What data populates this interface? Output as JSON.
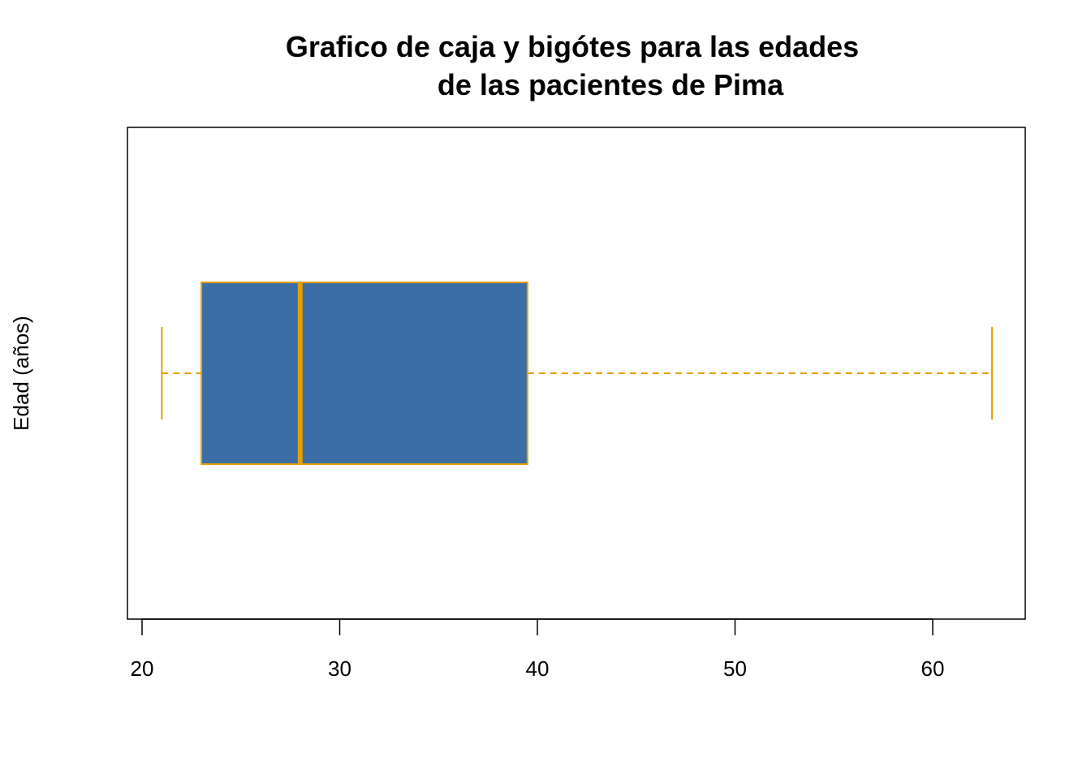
{
  "chart_data": {
    "type": "boxplot",
    "orientation": "horizontal",
    "title_lines": [
      "Grafico de caja y bigótes para las edades",
      "de las pacientes de Pima"
    ],
    "xlabel": "",
    "ylabel": "Edad (años)",
    "xlim": [
      20,
      64.5
    ],
    "x_ticks": [
      20,
      30,
      40,
      50,
      60
    ],
    "box": {
      "min": 21,
      "q1": 23,
      "median": 28,
      "q3": 39.5,
      "max": 63
    },
    "colors": {
      "box_fill": "#3B6EA5",
      "box_border": "#E69F00",
      "median": "#E69F00",
      "whisker": "#E69F00",
      "axis": "#000000"
    },
    "grid": false
  }
}
